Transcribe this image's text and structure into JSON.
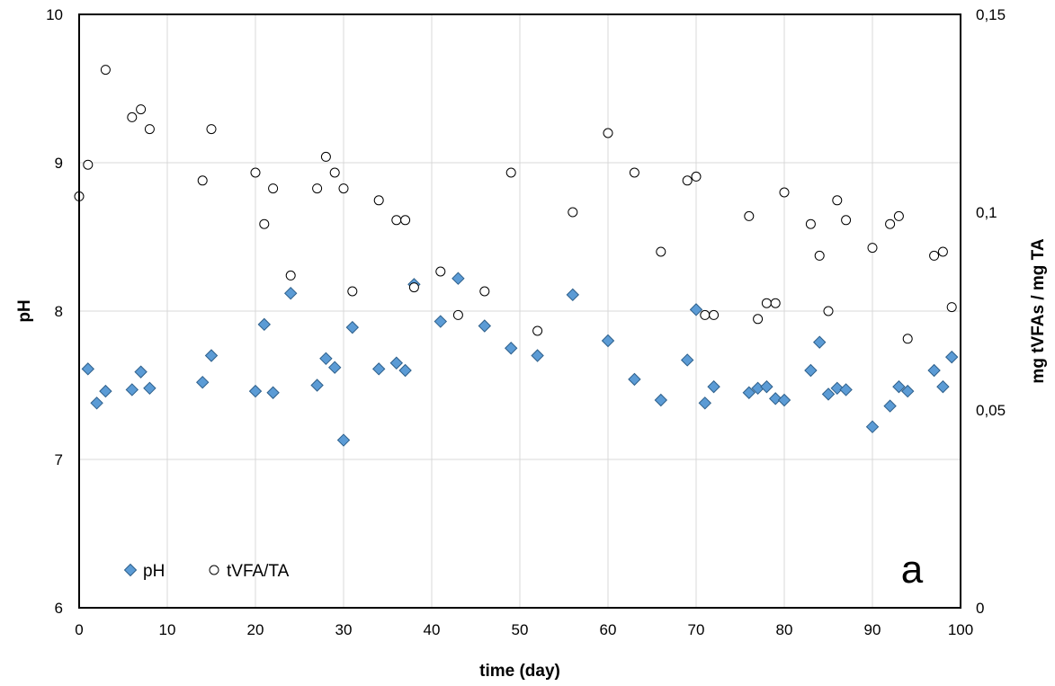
{
  "chart_data": {
    "type": "scatter",
    "title": "",
    "panel_label": "a",
    "xlabel": "time (day)",
    "ylabel_left": "pH",
    "ylabel_right": "mg tVFAs / mg TA",
    "xlim": [
      0,
      100
    ],
    "ylim_left": [
      6,
      10
    ],
    "ylim_right": [
      0,
      0.15
    ],
    "x_ticks": [
      "0",
      "10",
      "20",
      "30",
      "40",
      "50",
      "60",
      "70",
      "80",
      "90",
      "100"
    ],
    "y_left_ticks": [
      "6",
      "7",
      "8",
      "9",
      "10"
    ],
    "y_right_ticks": [
      "0",
      "0,05",
      "0,1",
      "0,15"
    ],
    "grid": true,
    "legend_position": "bottom-left",
    "legend": [
      {
        "label": "pH",
        "marker": "diamond",
        "color": "#5b9bd5"
      },
      {
        "label": "tVFA/TA",
        "marker": "circle",
        "color": "#ffffff"
      }
    ],
    "series": [
      {
        "name": "pH",
        "axis": "left",
        "marker": "diamond",
        "color": "#5b9bd5",
        "points": [
          [
            1,
            7.61
          ],
          [
            2,
            7.38
          ],
          [
            3,
            7.46
          ],
          [
            6,
            7.47
          ],
          [
            7,
            7.59
          ],
          [
            8,
            7.48
          ],
          [
            14,
            7.52
          ],
          [
            15,
            7.7
          ],
          [
            20,
            7.46
          ],
          [
            21,
            7.91
          ],
          [
            22,
            7.45
          ],
          [
            24,
            8.12
          ],
          [
            27,
            7.5
          ],
          [
            28,
            7.68
          ],
          [
            29,
            7.62
          ],
          [
            30,
            7.13
          ],
          [
            31,
            7.89
          ],
          [
            34,
            7.61
          ],
          [
            36,
            7.65
          ],
          [
            37,
            7.6
          ],
          [
            38,
            8.18
          ],
          [
            41,
            7.93
          ],
          [
            43,
            8.22
          ],
          [
            46,
            7.9
          ],
          [
            49,
            7.75
          ],
          [
            52,
            7.7
          ],
          [
            56,
            8.11
          ],
          [
            60,
            7.8
          ],
          [
            63,
            7.54
          ],
          [
            66,
            7.4
          ],
          [
            69,
            7.67
          ],
          [
            70,
            8.01
          ],
          [
            71,
            7.38
          ],
          [
            72,
            7.49
          ],
          [
            76,
            7.45
          ],
          [
            77,
            7.48
          ],
          [
            78,
            7.49
          ],
          [
            79,
            7.41
          ],
          [
            80,
            7.4
          ],
          [
            83,
            7.6
          ],
          [
            84,
            7.79
          ],
          [
            85,
            7.44
          ],
          [
            86,
            7.48
          ],
          [
            87,
            7.47
          ],
          [
            90,
            7.22
          ],
          [
            92,
            7.36
          ],
          [
            93,
            7.49
          ],
          [
            94,
            7.46
          ],
          [
            97,
            7.6
          ],
          [
            98,
            7.49
          ],
          [
            99,
            7.69
          ]
        ]
      },
      {
        "name": "tVFA/TA",
        "axis": "right",
        "marker": "circle",
        "color": "#ffffff",
        "points": [
          [
            0,
            0.104
          ],
          [
            1,
            0.112
          ],
          [
            3,
            0.136
          ],
          [
            6,
            0.124
          ],
          [
            7,
            0.126
          ],
          [
            8,
            0.121
          ],
          [
            14,
            0.108
          ],
          [
            15,
            0.121
          ],
          [
            20,
            0.11
          ],
          [
            21,
            0.097
          ],
          [
            22,
            0.106
          ],
          [
            24,
            0.084
          ],
          [
            27,
            0.106
          ],
          [
            28,
            0.114
          ],
          [
            29,
            0.11
          ],
          [
            30,
            0.106
          ],
          [
            31,
            0.08
          ],
          [
            34,
            0.103
          ],
          [
            36,
            0.098
          ],
          [
            37,
            0.098
          ],
          [
            38,
            0.081
          ],
          [
            41,
            0.085
          ],
          [
            43,
            0.074
          ],
          [
            46,
            0.08
          ],
          [
            49,
            0.11
          ],
          [
            52,
            0.07
          ],
          [
            56,
            0.1
          ],
          [
            60,
            0.12
          ],
          [
            63,
            0.11
          ],
          [
            66,
            0.09
          ],
          [
            69,
            0.108
          ],
          [
            70,
            0.109
          ],
          [
            71,
            0.074
          ],
          [
            72,
            0.074
          ],
          [
            76,
            0.099
          ],
          [
            77,
            0.073
          ],
          [
            78,
            0.077
          ],
          [
            79,
            0.077
          ],
          [
            80,
            0.105
          ],
          [
            83,
            0.097
          ],
          [
            84,
            0.089
          ],
          [
            85,
            0.075
          ],
          [
            86,
            0.103
          ],
          [
            87,
            0.098
          ],
          [
            90,
            0.091
          ],
          [
            92,
            0.097
          ],
          [
            93,
            0.099
          ],
          [
            94,
            0.068
          ],
          [
            97,
            0.089
          ],
          [
            98,
            0.09
          ],
          [
            99,
            0.076
          ]
        ]
      }
    ]
  }
}
